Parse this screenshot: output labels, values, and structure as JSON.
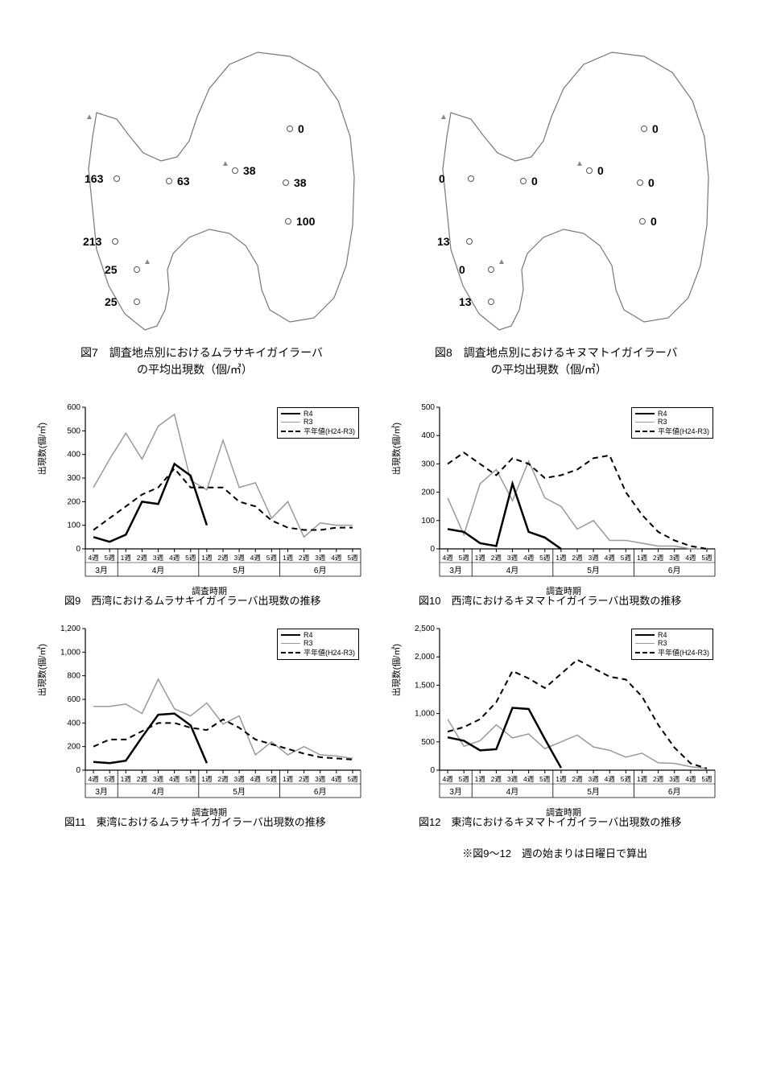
{
  "colors": {
    "bg": "#ffffff",
    "outline": "#777777",
    "text": "#000000",
    "r4": "#000000",
    "r3": "#999999",
    "avg": "#000000"
  },
  "fonts": {
    "body_pt": 14,
    "caption_pt": 13,
    "axis_pt": 11,
    "legend_pt": 9
  },
  "map7": {
    "caption_prefix": "図7",
    "caption_l1": "調査地点別におけるムラサキイガイラーバ",
    "caption_l2": "の平均出現数（個/㎥）",
    "points": [
      {
        "x": 300,
        "y": 120,
        "v": "0"
      },
      {
        "x": 232,
        "y": 172,
        "v": "38"
      },
      {
        "x": 150,
        "y": 185,
        "v": "63"
      },
      {
        "x": 295,
        "y": 187,
        "v": "38"
      },
      {
        "x": 85,
        "y": 182,
        "v": "163"
      },
      {
        "x": 298,
        "y": 235,
        "v": "100"
      },
      {
        "x": 83,
        "y": 260,
        "v": "213"
      },
      {
        "x": 110,
        "y": 295,
        "v": "25"
      },
      {
        "x": 110,
        "y": 335,
        "v": "25"
      }
    ]
  },
  "map8": {
    "caption_prefix": "図8",
    "caption_l1": "調査地点別におけるキヌマトイガイラーバ",
    "caption_l2": "の平均出現数（個/㎥）",
    "points": [
      {
        "x": 300,
        "y": 120,
        "v": "0"
      },
      {
        "x": 232,
        "y": 172,
        "v": "0"
      },
      {
        "x": 150,
        "y": 185,
        "v": "0"
      },
      {
        "x": 295,
        "y": 187,
        "v": "0"
      },
      {
        "x": 85,
        "y": 182,
        "v": "0"
      },
      {
        "x": 298,
        "y": 235,
        "v": "0"
      },
      {
        "x": 83,
        "y": 260,
        "v": "13"
      },
      {
        "x": 110,
        "y": 295,
        "v": "0"
      },
      {
        "x": 110,
        "y": 335,
        "v": "13"
      }
    ]
  },
  "chart_common": {
    "ylabel": "出現数(個/㎥)",
    "xlabel": "調査時期",
    "legend": {
      "r4": "R4",
      "r3": "R3",
      "avg": "平年値(H24-R3)"
    },
    "weeks": [
      "4週",
      "5週",
      "1週",
      "2週",
      "3週",
      "4週",
      "5週",
      "1週",
      "2週",
      "3週",
      "4週",
      "5週",
      "1週",
      "2週",
      "3週",
      "4週",
      "5週"
    ],
    "months": [
      "3月",
      "4月",
      "5月",
      "6月"
    ],
    "month_spans": [
      2,
      5,
      5,
      5
    ]
  },
  "chart9": {
    "caption_prefix": "図9",
    "caption": "西湾におけるムラサキイガイラーバ出現数の推移",
    "type": "line",
    "ylim": [
      0,
      600
    ],
    "ytick_step": 100,
    "r4": [
      50,
      30,
      60,
      200,
      190,
      360,
      310,
      100,
      null,
      null,
      null,
      null,
      null,
      null,
      null,
      null,
      null
    ],
    "r3": [
      260,
      380,
      490,
      380,
      520,
      570,
      290,
      250,
      460,
      260,
      280,
      130,
      200,
      50,
      110,
      100,
      100
    ],
    "avg": [
      80,
      130,
      180,
      230,
      260,
      340,
      260,
      260,
      260,
      200,
      180,
      120,
      90,
      80,
      80,
      90,
      90
    ]
  },
  "chart10": {
    "caption_prefix": "図10",
    "caption": "西湾におけるキヌマトイガイラーバ出現数の推移",
    "type": "line",
    "ylim": [
      0,
      500
    ],
    "ytick_step": 100,
    "r4": [
      70,
      60,
      20,
      10,
      230,
      60,
      40,
      0,
      null,
      null,
      null,
      null,
      null,
      null,
      null,
      null,
      null
    ],
    "r3": [
      180,
      50,
      230,
      280,
      170,
      310,
      180,
      150,
      70,
      100,
      30,
      30,
      20,
      10,
      10,
      0,
      0
    ],
    "avg": [
      300,
      340,
      300,
      260,
      320,
      300,
      250,
      260,
      280,
      320,
      330,
      200,
      120,
      60,
      30,
      10,
      0
    ]
  },
  "chart11": {
    "caption_prefix": "図11",
    "caption": "東湾におけるムラサキイガイラーバ出現数の推移",
    "type": "line",
    "ylim": [
      0,
      1200
    ],
    "ytick_step": 200,
    "r4": [
      70,
      60,
      80,
      280,
      470,
      480,
      380,
      60,
      null,
      null,
      null,
      null,
      null,
      null,
      null,
      null,
      null
    ],
    "r3": [
      540,
      540,
      560,
      480,
      770,
      520,
      460,
      570,
      390,
      460,
      130,
      240,
      130,
      200,
      130,
      120,
      100
    ],
    "avg": [
      200,
      260,
      260,
      330,
      400,
      400,
      360,
      340,
      430,
      360,
      260,
      220,
      180,
      140,
      110,
      100,
      90
    ]
  },
  "chart12": {
    "caption_prefix": "図12",
    "caption": "東湾におけるキヌマトイガイラーバ出現数の推移",
    "type": "line",
    "ylim": [
      0,
      2500
    ],
    "ytick_step": 500,
    "r4": [
      580,
      520,
      350,
      370,
      1100,
      1080,
      550,
      40,
      null,
      null,
      null,
      null,
      null,
      null,
      null,
      null,
      null
    ],
    "r3": [
      900,
      420,
      520,
      800,
      570,
      640,
      380,
      500,
      620,
      410,
      350,
      230,
      300,
      130,
      120,
      60,
      30
    ],
    "avg": [
      680,
      760,
      900,
      1200,
      1750,
      1620,
      1450,
      1700,
      1950,
      1800,
      1650,
      1600,
      1300,
      800,
      400,
      120,
      30
    ]
  },
  "footnote": "※図9～12　週の始まりは日曜日で算出"
}
